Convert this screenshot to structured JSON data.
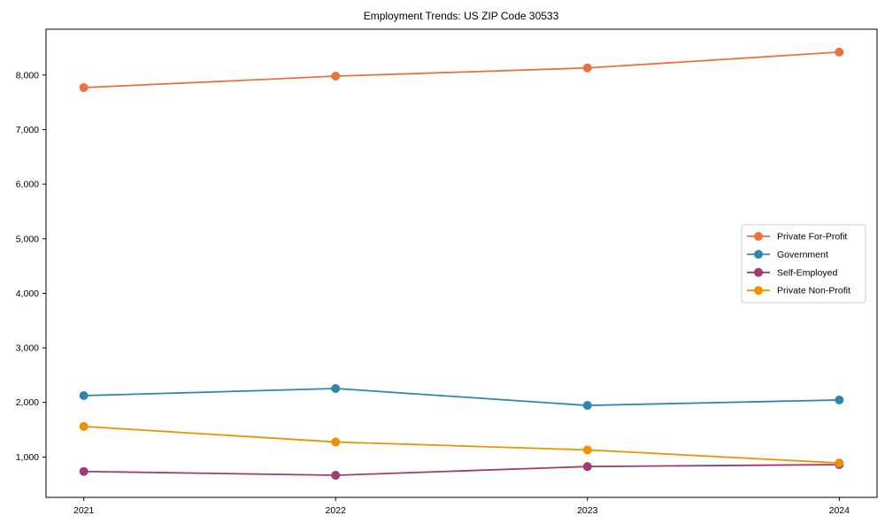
{
  "title": "Employment Trends: US ZIP Code 30533",
  "chart_data": {
    "type": "line",
    "title": "Employment Trends: US ZIP Code 30533",
    "xlabel": "",
    "ylabel": "",
    "x": [
      2021,
      2022,
      2023,
      2024
    ],
    "x_tick_labels": [
      "2021",
      "2022",
      "2023",
      "2024"
    ],
    "y_ticks": [
      1000,
      2000,
      3000,
      4000,
      5000,
      6000,
      7000,
      8000
    ],
    "y_tick_labels": [
      "1,000",
      "2,000",
      "3,000",
      "4,000",
      "5,000",
      "6,000",
      "7,000",
      "8,000"
    ],
    "xlim": [
      2020.85,
      2024.15
    ],
    "ylim": [
      260,
      8840
    ],
    "grid": false,
    "legend_position": "center-right",
    "marker": "circle",
    "series": [
      {
        "name": "Private For-Profit",
        "color": "#E8743B",
        "values": [
          7770,
          7980,
          8130,
          8420
        ]
      },
      {
        "name": "Government",
        "color": "#2E86AB",
        "values": [
          2125,
          2255,
          1945,
          2045
        ]
      },
      {
        "name": "Self-Employed",
        "color": "#A23B72",
        "values": [
          735,
          665,
          825,
          860
        ]
      },
      {
        "name": "Private Non-Profit",
        "color": "#F18F01",
        "values": [
          1560,
          1275,
          1130,
          890
        ]
      }
    ]
  }
}
